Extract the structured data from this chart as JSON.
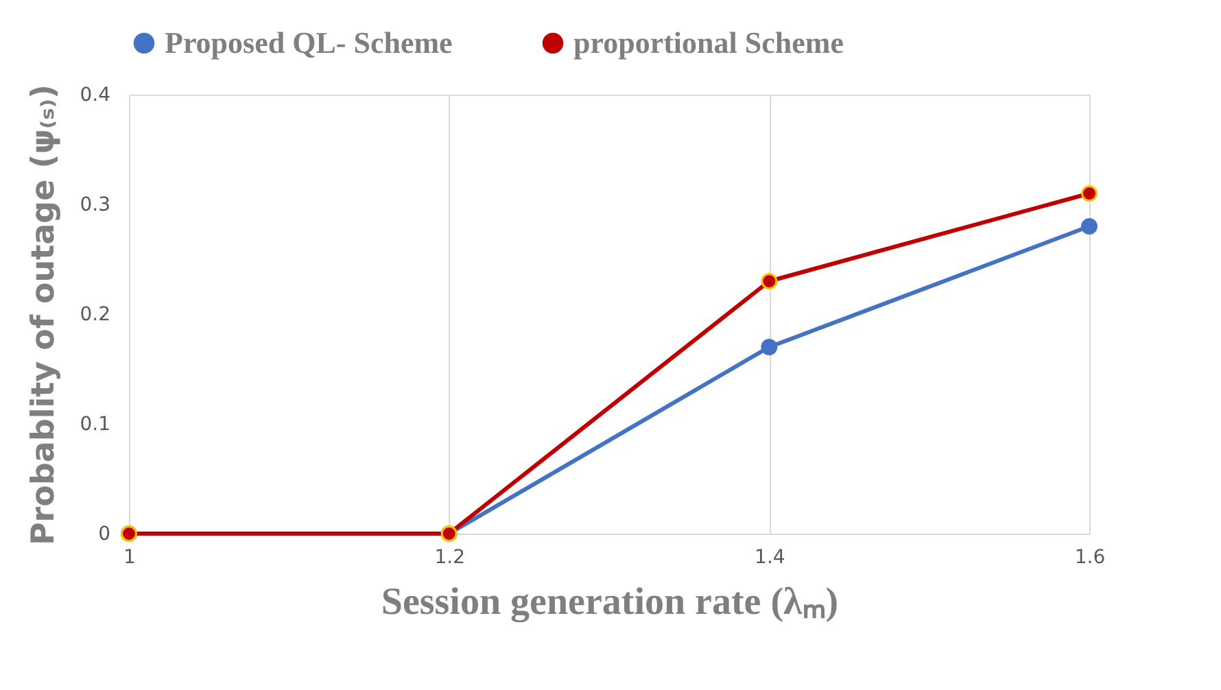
{
  "chart_data": {
    "type": "line",
    "xlabel": "Session generation rate (λₘ)",
    "ylabel": "Probablity of outage (ψ₍ₛ₎)",
    "categories": [
      "1",
      "1.2",
      "1.4",
      "1.6"
    ],
    "series": [
      {
        "name": "Proposed QL- Scheme",
        "color": "#4472c4",
        "values": [
          0,
          0,
          0.17,
          0.28
        ]
      },
      {
        "name": "proportional Scheme",
        "color": "#c00000",
        "values": [
          0,
          0,
          0.23,
          0.31
        ]
      }
    ],
    "ylim": [
      0,
      0.4
    ],
    "yticks": [
      0,
      0.1,
      0.2,
      0.3,
      0.4
    ],
    "grid": "x",
    "legend": "top",
    "marker": "circle",
    "line_style": "solid"
  }
}
